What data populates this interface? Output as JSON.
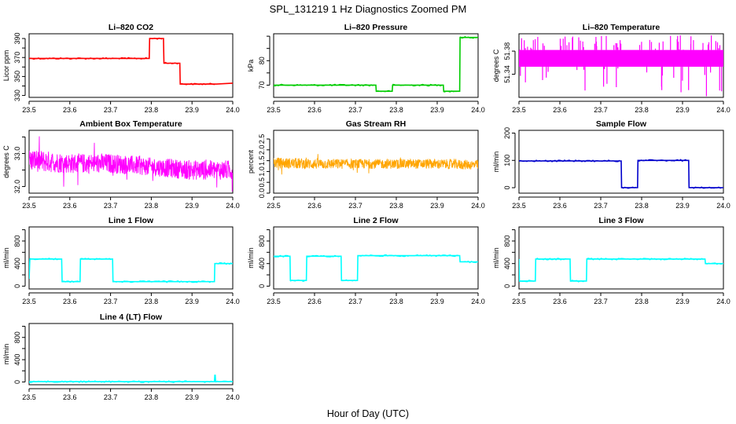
{
  "figure": {
    "title": "SPL_131219  1 Hz Diagnostics Zoomed PM",
    "xlabel": "Hour of Day (UTC)"
  },
  "chart_data": [
    {
      "id": "co2",
      "type": "line",
      "title": "Li–820 CO2",
      "ylabel": "Licor ppm",
      "color": "#ff0000",
      "style": "line",
      "xlim": [
        23.5,
        24.0
      ],
      "ylim": [
        328,
        395
      ],
      "xticks": [
        23.5,
        23.6,
        23.7,
        23.8,
        23.9,
        24.0
      ],
      "xticklabels": [
        "23.5",
        "23.6",
        "23.7",
        "23.8",
        "23.9",
        "24.0"
      ],
      "yticks": [
        330,
        340,
        350,
        360,
        370,
        380,
        390
      ],
      "yticklabels": [
        "330",
        "",
        "350",
        "",
        "370",
        "",
        "390"
      ],
      "x": [
        23.5,
        23.72,
        23.795,
        23.796,
        23.83,
        23.831,
        23.87,
        23.871,
        23.96,
        24.0
      ],
      "y": [
        369,
        369,
        369,
        390,
        390,
        364,
        364,
        342,
        342,
        343
      ]
    },
    {
      "id": "pressure",
      "type": "line",
      "title": "Li–820 Pressure",
      "ylabel": "kPa",
      "color": "#00cc00",
      "style": "line",
      "xlim": [
        23.5,
        24.0
      ],
      "ylim": [
        65,
        91
      ],
      "xticks": [
        23.5,
        23.6,
        23.7,
        23.8,
        23.9,
        24.0
      ],
      "xticklabels": [
        "23.5",
        "23.6",
        "23.7",
        "23.8",
        "23.9",
        "24.0"
      ],
      "yticks": [
        70,
        75,
        80,
        85,
        90
      ],
      "yticklabels": [
        "70",
        "",
        "80",
        "",
        ""
      ],
      "x": [
        23.5,
        23.75,
        23.751,
        23.79,
        23.791,
        23.915,
        23.916,
        23.955,
        23.956,
        24.0
      ],
      "y": [
        70,
        70,
        67.5,
        67.5,
        70,
        70,
        67.5,
        67.5,
        89.5,
        89.5
      ]
    },
    {
      "id": "temp",
      "type": "area",
      "title": "Li–820 Temperature",
      "ylabel": "degrees C",
      "color": "#ff00ff",
      "style": "band",
      "xlim": [
        23.5,
        24.0
      ],
      "ylim": [
        51.3,
        51.41
      ],
      "xticks": [
        23.5,
        23.6,
        23.7,
        23.8,
        23.9,
        24.0
      ],
      "xticklabels": [
        "23.5",
        "23.6",
        "23.7",
        "23.8",
        "23.9",
        "24.0"
      ],
      "yticks": [
        51.34,
        51.38
      ],
      "yticklabels": [
        "51.34",
        "51.38"
      ],
      "x": [
        23.5,
        24.0
      ],
      "band_low": [
        51.353,
        51.353
      ],
      "band_high": [
        51.382,
        51.382
      ]
    },
    {
      "id": "ambient",
      "type": "line",
      "title": "Ambient Box Temperature",
      "ylabel": "degrees C",
      "color": "#ff00ff",
      "style": "noise",
      "xlim": [
        23.5,
        24.0
      ],
      "ylim": [
        31.8,
        33.7
      ],
      "xticks": [
        23.5,
        23.6,
        23.7,
        23.8,
        23.9,
        24.0
      ],
      "xticklabels": [
        "23.5",
        "23.6",
        "23.7",
        "23.8",
        "23.9",
        "24.0"
      ],
      "yticks": [
        32.0,
        32.5,
        33.0,
        33.5
      ],
      "yticklabels": [
        "32.0",
        "",
        "33.0",
        ""
      ],
      "x": [
        23.5,
        23.6,
        23.7,
        23.8,
        23.9,
        24.0
      ],
      "y": [
        32.8,
        32.7,
        32.7,
        32.6,
        32.5,
        32.5
      ],
      "spread": [
        0.7,
        0.6,
        0.6,
        0.55,
        0.6,
        0.6
      ]
    },
    {
      "id": "rh",
      "type": "scatter",
      "title": "Gas Stream RH",
      "ylabel": "percent",
      "color": "#ffa500",
      "style": "noise",
      "xlim": [
        23.5,
        24.0
      ],
      "ylim": [
        0,
        2.9
      ],
      "xticks": [
        23.5,
        23.6,
        23.7,
        23.8,
        23.9,
        24.0
      ],
      "xticklabels": [
        "23.5",
        "23.6",
        "23.7",
        "23.8",
        "23.9",
        "24.0"
      ],
      "yticks": [
        0.0,
        0.5,
        1.0,
        1.5,
        2.0,
        2.5
      ],
      "yticklabels": [
        "0.0",
        "0.5",
        "1.0",
        "1.5",
        "2.0",
        "2.5"
      ],
      "x": [
        23.5,
        23.6,
        23.7,
        23.8,
        23.9,
        24.0
      ],
      "y": [
        1.4,
        1.35,
        1.35,
        1.35,
        1.35,
        1.3
      ],
      "spread": [
        0.5,
        0.5,
        0.45,
        0.45,
        0.45,
        0.45
      ]
    },
    {
      "id": "sample",
      "type": "line",
      "title": "Sample Flow",
      "ylabel": "ml/min",
      "color": "#0000cc",
      "style": "line",
      "xlim": [
        23.5,
        24.0
      ],
      "ylim": [
        -20,
        210
      ],
      "xticks": [
        23.5,
        23.6,
        23.7,
        23.8,
        23.9,
        24.0
      ],
      "xticklabels": [
        "23.5",
        "23.6",
        "23.7",
        "23.8",
        "23.9",
        "24.0"
      ],
      "yticks": [
        0,
        100,
        200
      ],
      "yticklabels": [
        "0",
        "100",
        "200"
      ],
      "x": [
        23.5,
        23.75,
        23.751,
        23.79,
        23.791,
        23.915,
        23.916,
        24.0
      ],
      "y": [
        98,
        98,
        0,
        0,
        100,
        100,
        0,
        0
      ]
    },
    {
      "id": "line1",
      "type": "line",
      "title": "Line 1 Flow",
      "ylabel": "ml/min",
      "color": "#00ffff",
      "style": "line",
      "xlim": [
        23.5,
        24.0
      ],
      "ylim": [
        -50,
        1050
      ],
      "xticks": [
        23.5,
        23.6,
        23.7,
        23.8,
        23.9,
        24.0
      ],
      "xticklabels": [
        "23.5",
        "23.6",
        "23.7",
        "23.8",
        "23.9",
        "24.0"
      ],
      "yticks": [
        0,
        200,
        400,
        600,
        800,
        1000
      ],
      "yticklabels": [
        "0",
        "",
        "400",
        "",
        "800",
        ""
      ],
      "x": [
        23.5,
        23.502,
        23.58,
        23.581,
        23.625,
        23.626,
        23.705,
        23.706,
        23.955,
        23.956,
        24.0
      ],
      "y": [
        130,
        480,
        480,
        80,
        80,
        480,
        480,
        80,
        80,
        400,
        400
      ]
    },
    {
      "id": "line2",
      "type": "line",
      "title": "Line 2 Flow",
      "ylabel": "ml/min",
      "color": "#00ffff",
      "style": "line",
      "xlim": [
        23.5,
        24.0
      ],
      "ylim": [
        -50,
        1050
      ],
      "xticks": [
        23.5,
        23.6,
        23.7,
        23.8,
        23.9,
        24.0
      ],
      "xticklabels": [
        "23.5",
        "23.6",
        "23.7",
        "23.8",
        "23.9",
        "24.0"
      ],
      "yticks": [
        0,
        200,
        400,
        600,
        800,
        1000
      ],
      "yticklabels": [
        "0",
        "",
        "400",
        "",
        "800",
        ""
      ],
      "x": [
        23.5,
        23.54,
        23.541,
        23.58,
        23.581,
        23.665,
        23.666,
        23.705,
        23.706,
        23.955,
        23.956,
        24.0
      ],
      "y": [
        530,
        530,
        100,
        100,
        530,
        530,
        100,
        100,
        540,
        540,
        430,
        430
      ]
    },
    {
      "id": "line3",
      "type": "line",
      "title": "Line 3 Flow",
      "ylabel": "ml/min",
      "color": "#00ffff",
      "style": "line",
      "xlim": [
        23.5,
        24.0
      ],
      "ylim": [
        -50,
        1050
      ],
      "xticks": [
        23.5,
        23.6,
        23.7,
        23.8,
        23.9,
        24.0
      ],
      "xticklabels": [
        "23.5",
        "23.6",
        "23.7",
        "23.8",
        "23.9",
        "24.0"
      ],
      "yticks": [
        0,
        200,
        400,
        600,
        800,
        1000
      ],
      "yticklabels": [
        "0",
        "",
        "400",
        "",
        "800",
        ""
      ],
      "x": [
        23.5,
        23.501,
        23.54,
        23.541,
        23.625,
        23.626,
        23.665,
        23.666,
        23.955,
        23.956,
        24.0
      ],
      "y": [
        480,
        90,
        90,
        480,
        480,
        90,
        90,
        480,
        480,
        400,
        400
      ]
    },
    {
      "id": "line4",
      "type": "line",
      "title": "Line 4 (LT) Flow",
      "ylabel": "ml/min",
      "color": "#00ffff",
      "style": "line",
      "xlim": [
        23.5,
        24.0
      ],
      "ylim": [
        -50,
        1050
      ],
      "xticks": [
        23.5,
        23.6,
        23.7,
        23.8,
        23.9,
        24.0
      ],
      "xticklabels": [
        "23.5",
        "23.6",
        "23.7",
        "23.8",
        "23.9",
        "24.0"
      ],
      "yticks": [
        0,
        200,
        400,
        600,
        800,
        1000
      ],
      "yticklabels": [
        "0",
        "",
        "400",
        "",
        "800",
        ""
      ],
      "x": [
        23.5,
        23.955,
        23.956,
        23.957,
        23.958,
        24.0
      ],
      "y": [
        5,
        5,
        120,
        120,
        5,
        5
      ]
    }
  ]
}
